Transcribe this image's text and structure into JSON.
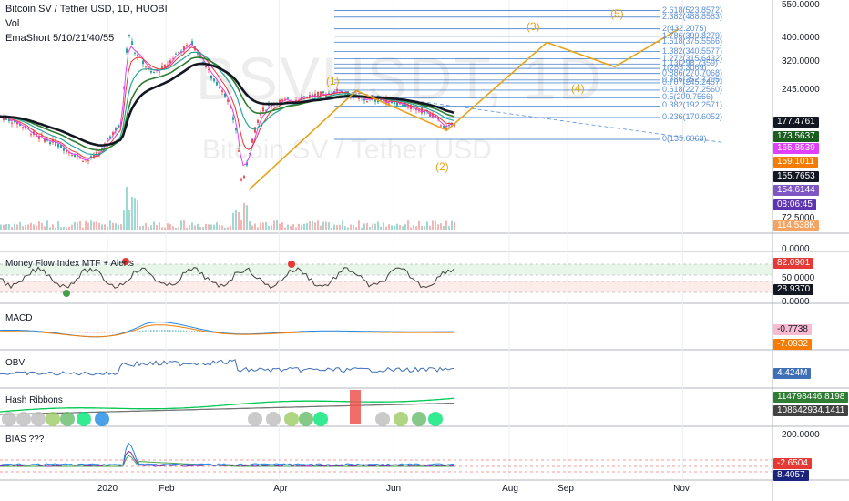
{
  "header": {
    "symbol_line": "Bitcoin SV / Tether USD, 1D, HUOBI",
    "vol_label": "Vol",
    "ema_label": "EmaShort 5/10/21/40/55"
  },
  "watermark": {
    "line1": "BSVUSDT, 1D",
    "line2": "Bitcoin SV / Tether USD"
  },
  "colors": {
    "orange": "#e8a317",
    "fib_blue": "#5b8fd6",
    "ema_pink": "#e040fb",
    "ema_red": "#e53935",
    "ema_teal": "#26a69a",
    "ema_green": "#2e7d32",
    "ema_black": "#131722",
    "candle_up": "#26a69a",
    "candle_down": "#ef5350"
  },
  "price_axis": {
    "ticks": [
      "550.0000",
      "400.0000",
      "320.0000",
      "245.0000"
    ],
    "badges": [
      {
        "text": "177.4761",
        "color": "#131722"
      },
      {
        "text": "173.5637",
        "color": "#1b5e20"
      },
      {
        "text": "165.8539",
        "color": "#e040fb"
      },
      {
        "text": "159.1011",
        "color": "#f57c00"
      },
      {
        "text": "155.7653",
        "color": "#131722"
      },
      {
        "text": "154.6144",
        "color": "#7e57c2"
      },
      {
        "text": "08:06:45",
        "color": "#5e35b1"
      }
    ],
    "low_tick": "72.5000",
    "volume_badge": "114.538K"
  },
  "fib_levels": [
    {
      "label": "2.618(523.8572)",
      "price": 523.8572
    },
    {
      "label": "2.382(488.8583)",
      "price": 488.8583
    },
    {
      "label": "2(432.2075)",
      "price": 432.2075
    },
    {
      "label": "1.786(399.8279)",
      "price": 399.8279
    },
    {
      "label": "1.618(375.5566)",
      "price": 375.5566
    },
    {
      "label": "1.382(340.5577)",
      "price": 340.5577
    },
    {
      "label": "1.272(315.6432)",
      "price": 315.6432
    },
    {
      "label": "1.13(298.7359)",
      "price": 298.7359
    },
    {
      "label": "1(285.3069)",
      "price": 285.3069
    },
    {
      "label": "0.886(270.7068)",
      "price": 270.7068
    },
    {
      "label": "0.786(252.7205)",
      "price": 252.7205
    },
    {
      "label": "0.707(245.2457)",
      "price": 245.2457
    },
    {
      "label": "0.618(227.2560)",
      "price": 227.256
    },
    {
      "label": "0.5(209.7566)",
      "price": 209.7566
    },
    {
      "label": "0.382(192.2571)",
      "price": 192.2571
    },
    {
      "label": "0.236(170.6052)",
      "price": 170.6052
    },
    {
      "label": "0(135.6063)",
      "price": 135.6063
    }
  ],
  "wave_labels": [
    "(1)",
    "(2)",
    "(3)",
    "(4)",
    "(5)"
  ],
  "x_axis": {
    "ticks": [
      "2020",
      "Feb",
      "Apr",
      "Jun",
      "Aug",
      "Sep",
      "Nov"
    ]
  },
  "panels": {
    "mfi": {
      "title": "Money Flow Index MTF + Alerts",
      "ticks": [
        "50.0000"
      ],
      "top_tick": "0.0000",
      "badges": [
        {
          "text": "82.0901",
          "color": "#e53935"
        },
        {
          "text": "28.9370",
          "color": "#131722"
        }
      ],
      "bottom_tick": "0.0000"
    },
    "macd": {
      "title": "MACD",
      "badges": [
        {
          "text": "-0.7738",
          "color": "#f8bbd0",
          "dark": true
        },
        {
          "text": "-7.0932",
          "color": "#f57c00"
        }
      ]
    },
    "obv": {
      "title": "OBV",
      "badges": [
        {
          "text": "4.424M",
          "color": "#3f6fb5"
        }
      ]
    },
    "hash": {
      "title": "Hash Ribbons",
      "badges": [
        {
          "text": "114798446.8198",
          "color": "#2e7d32"
        },
        {
          "text": "108642934.1411",
          "color": "#424242"
        }
      ]
    },
    "bias": {
      "title": "BIAS ???",
      "ticks": [
        "200.0000"
      ],
      "badges": [
        {
          "text": "-2.6504",
          "color": "#e53935"
        },
        {
          "text": "8.4057",
          "color": "#1a237e"
        }
      ]
    }
  },
  "chart_data": {
    "type": "line",
    "title": "Bitcoin SV / Tether USD, 1D, HUOBI",
    "price_scale": "log",
    "ylim": [
      60,
      600
    ],
    "x": [
      "2020",
      "Feb",
      "Apr",
      "Jun",
      "Aug",
      "Sep",
      "Nov"
    ],
    "series": [
      {
        "name": "Elliott wave projection",
        "points": [
          {
            "x": "2020-03-16",
            "y": 80
          },
          {
            "x": "2020-05-12",
            "y": 226
          },
          {
            "x": "2020-06-29",
            "y": 149
          },
          {
            "x": "2020-08-21",
            "y": 375
          },
          {
            "x": "2020-09-26",
            "y": 290
          },
          {
            "x": "2020-10-30",
            "y": 432
          }
        ]
      }
    ],
    "last_close": 155.7653,
    "last_volume": "114.538K"
  }
}
